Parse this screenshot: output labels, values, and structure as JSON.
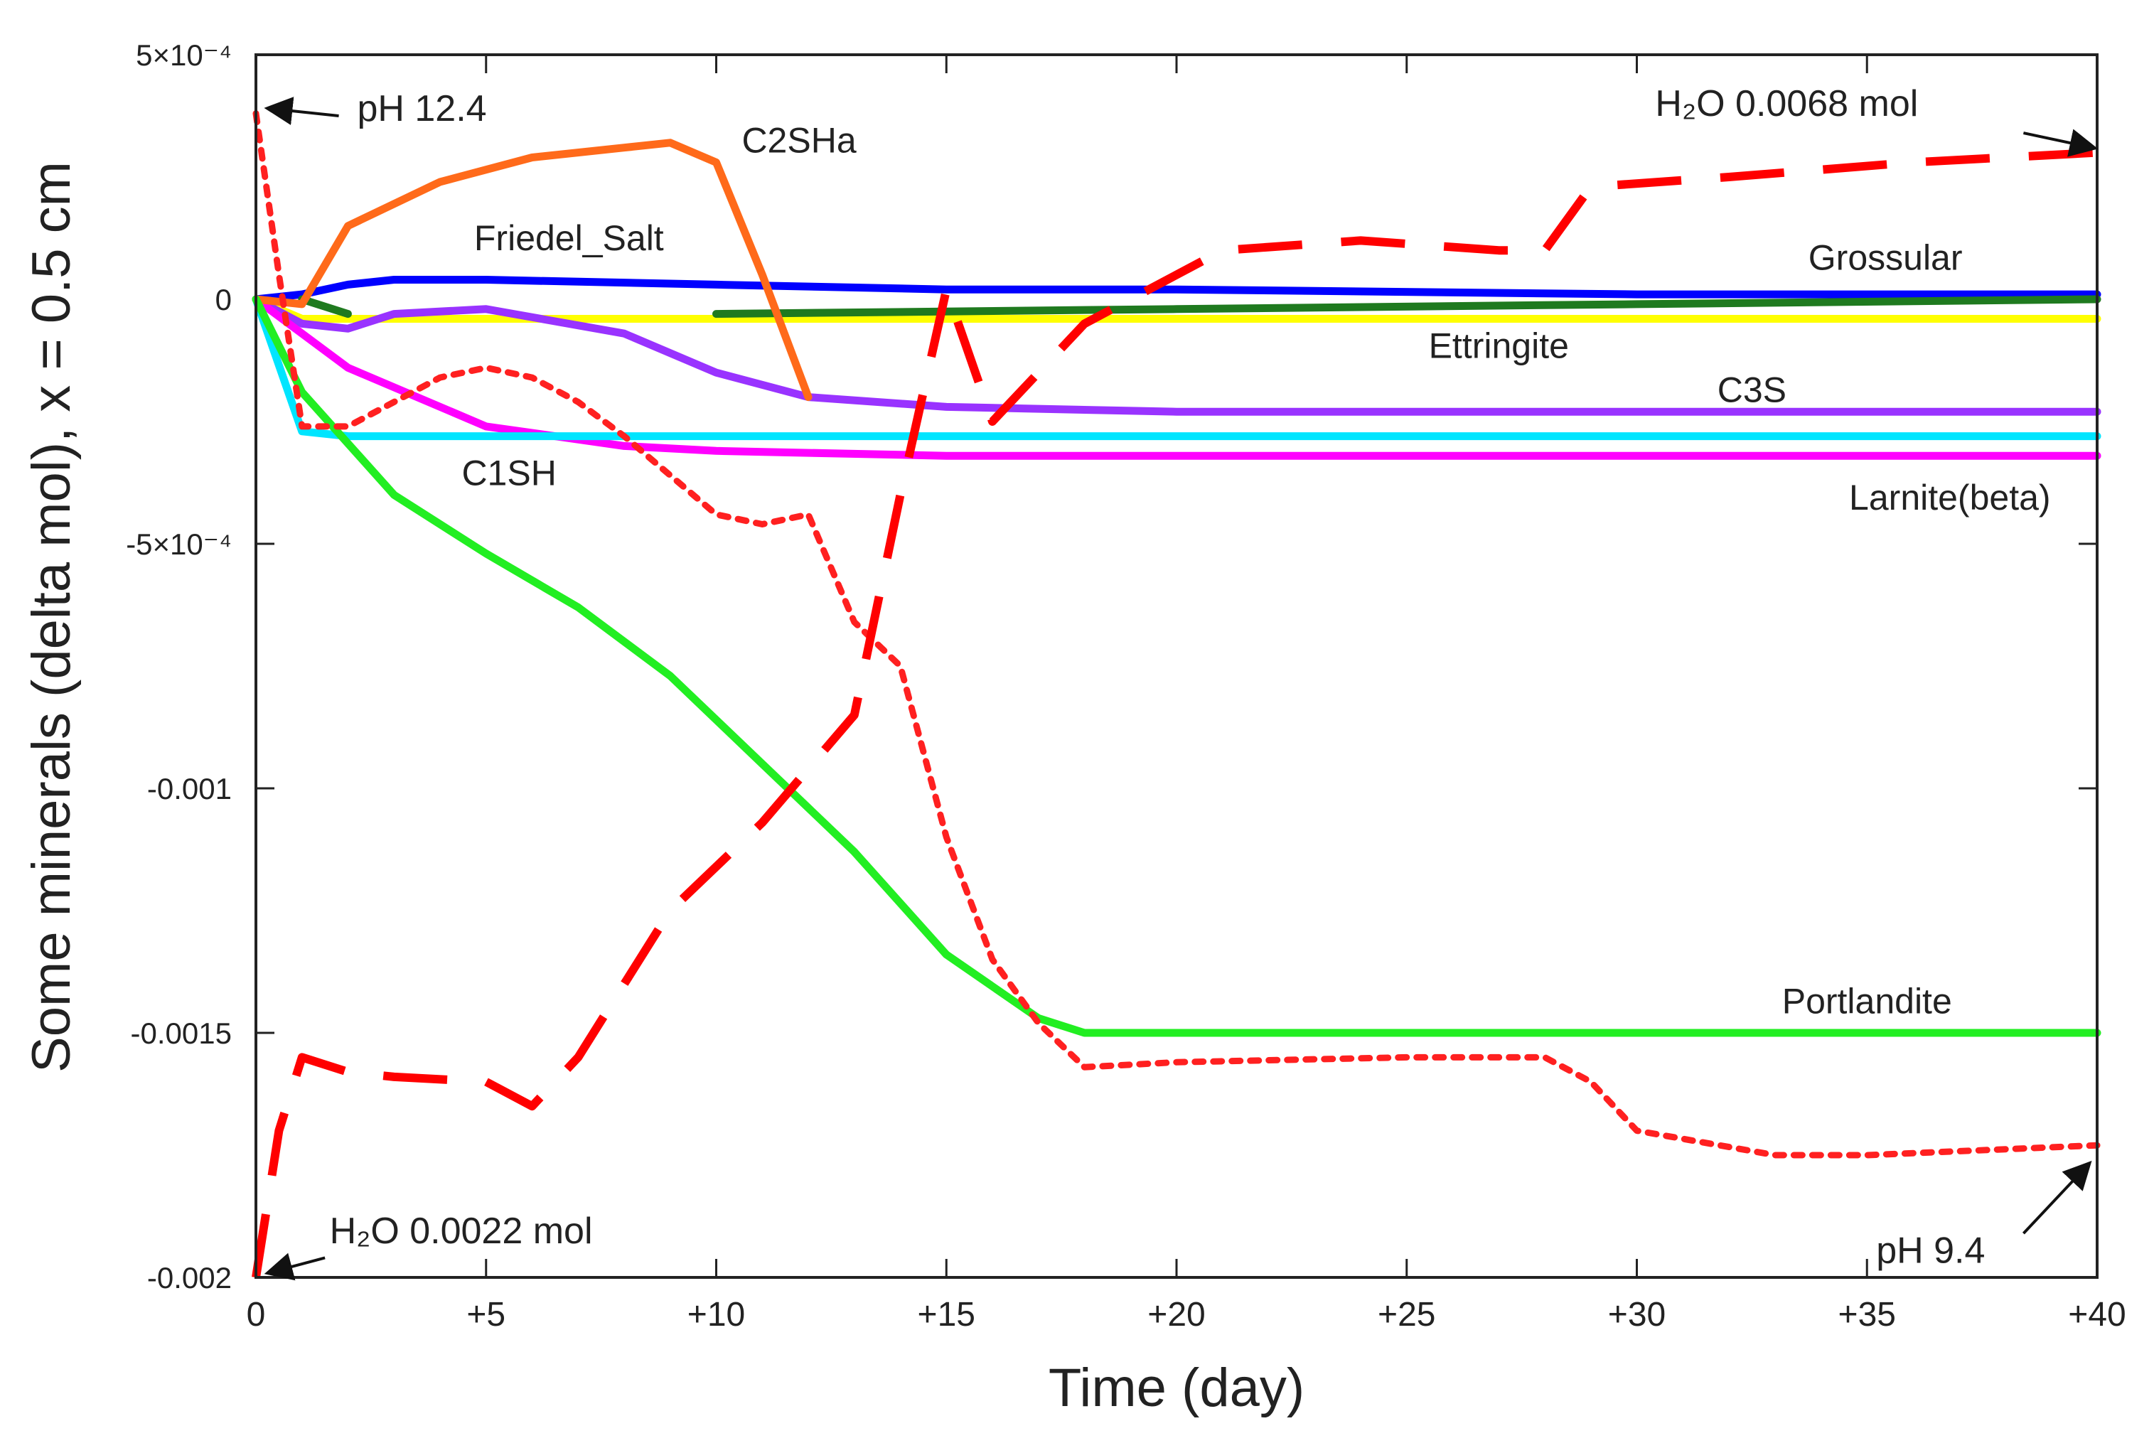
{
  "chart_data": {
    "type": "line",
    "title": "",
    "xlabel": "Time (day)",
    "ylabel": "Some minerals (delta mol), x = 0.5 cm",
    "xlim": [
      0,
      40
    ],
    "ylim": [
      -0.002,
      0.0005
    ],
    "xticks": [
      {
        "value": 0,
        "label": "0"
      },
      {
        "value": 5,
        "label": "+5"
      },
      {
        "value": 10,
        "label": "+10"
      },
      {
        "value": 15,
        "label": "+15"
      },
      {
        "value": 20,
        "label": "+20"
      },
      {
        "value": 25,
        "label": "+25"
      },
      {
        "value": 30,
        "label": "+30"
      },
      {
        "value": 35,
        "label": "+35"
      },
      {
        "value": 40,
        "label": "+40"
      }
    ],
    "yticks": [
      {
        "value": 0.0005,
        "label": "5×10⁻⁴"
      },
      {
        "value": 0,
        "label": "0"
      },
      {
        "value": -0.0005,
        "label": "-5×10⁻⁴"
      },
      {
        "value": -0.001,
        "label": "-0.001"
      },
      {
        "value": -0.0015,
        "label": "-0.0015"
      },
      {
        "value": -0.002,
        "label": "-0.002"
      }
    ],
    "series": [
      {
        "name": "Ettringite",
        "label": "Ettringite",
        "color": "#ffff00",
        "style": "solid",
        "label_at": [
          27,
          -0.00012
        ],
        "x": [
          0,
          1,
          2,
          5,
          10,
          20,
          30,
          40
        ],
        "y": [
          0,
          -4e-05,
          -4e-05,
          -4e-05,
          -4e-05,
          -4e-05,
          -4e-05,
          -4e-05
        ]
      },
      {
        "name": "Friedel_Salt",
        "label": "Friedel_Salt",
        "color": "#0000ff",
        "style": "solid",
        "label_at": [
          6.8,
          0.0001
        ],
        "x": [
          0,
          1,
          2,
          3,
          5,
          10,
          15,
          20,
          30,
          40
        ],
        "y": [
          0,
          1e-05,
          3e-05,
          4e-05,
          4e-05,
          3e-05,
          2e-05,
          2e-05,
          1e-05,
          1e-05
        ]
      },
      {
        "name": "Grossular",
        "label": "Grossular",
        "color": "#1f7a1f",
        "style": "solid",
        "label_at": [
          35.4,
          6e-05
        ],
        "segments": [
          {
            "x": [
              1,
              2
            ],
            "y": [
              0,
              -3e-05
            ]
          },
          {
            "x": [
              10,
              20,
              30,
              40
            ],
            "y": [
              -3e-05,
              -2e-05,
              -1e-05,
              0
            ]
          }
        ]
      },
      {
        "name": "C3S",
        "label": "C3S",
        "color": "#9933ff",
        "style": "solid",
        "label_at": [
          32.5,
          -0.00021
        ],
        "x": [
          0,
          1,
          2,
          3,
          5,
          8,
          10,
          12,
          15,
          20,
          40
        ],
        "y": [
          0,
          -5e-05,
          -6e-05,
          -3e-05,
          -2e-05,
          -7e-05,
          -0.00015,
          -0.0002,
          -0.00022,
          -0.00023,
          -0.00023
        ]
      },
      {
        "name": "Larnite(beta)",
        "label": "Larnite(beta)",
        "color": "#ff00ff",
        "style": "solid",
        "label_at": [
          36.8,
          -0.00043
        ],
        "x": [
          0,
          2,
          5,
          8,
          10,
          15,
          20,
          40
        ],
        "y": [
          0,
          -0.00014,
          -0.00026,
          -0.0003,
          -0.00031,
          -0.00032,
          -0.00032,
          -0.00032
        ]
      },
      {
        "name": "C1SH",
        "label": "C1SH",
        "color": "#00e5ff",
        "style": "solid",
        "label_at": [
          5.5,
          -0.00038
        ],
        "x": [
          0,
          1,
          2,
          5,
          10,
          20,
          30,
          40
        ],
        "y": [
          0,
          -0.00027,
          -0.00028,
          -0.00028,
          -0.00028,
          -0.00028,
          -0.00028,
          -0.00028
        ]
      },
      {
        "name": "C2SHa",
        "label": "C2SHa",
        "color": "#ff6a1a",
        "style": "solid",
        "label_at": [
          11.8,
          0.0003
        ],
        "x": [
          0,
          1,
          2,
          4,
          6,
          8,
          9,
          10,
          11,
          12
        ],
        "y": [
          0,
          -1e-05,
          0.00015,
          0.00024,
          0.00029,
          0.00031,
          0.00032,
          0.00028,
          5e-05,
          -0.0002
        ]
      },
      {
        "name": "Portlandite",
        "label": "Portlandite",
        "color": "#22ee22",
        "style": "solid",
        "label_at": [
          35,
          -0.00146
        ],
        "x": [
          0,
          1,
          3,
          5,
          7,
          9,
          11,
          13,
          15,
          17,
          18,
          20,
          40
        ],
        "y": [
          0,
          -0.00019,
          -0.0004,
          -0.00052,
          -0.00063,
          -0.00077,
          -0.00095,
          -0.00113,
          -0.00134,
          -0.00147,
          -0.0015,
          -0.0015,
          -0.0015
        ]
      },
      {
        "name": "pH",
        "label": "",
        "color": "#ff2020",
        "style": "dotted",
        "x": [
          0,
          0.5,
          1,
          2,
          3,
          4,
          5,
          6,
          7,
          8,
          9,
          10,
          11,
          12,
          13,
          14,
          15,
          16,
          17,
          18,
          20,
          25,
          28,
          29,
          30,
          33,
          35,
          40
        ],
        "y": [
          0.00038,
          5e-05,
          -0.00026,
          -0.00026,
          -0.00021,
          -0.00016,
          -0.00014,
          -0.00016,
          -0.00021,
          -0.00028,
          -0.00036,
          -0.00044,
          -0.00046,
          -0.00044,
          -0.00066,
          -0.00075,
          -0.0011,
          -0.00135,
          -0.00148,
          -0.00157,
          -0.00156,
          -0.00155,
          -0.00155,
          -0.0016,
          -0.0017,
          -0.00175,
          -0.00175,
          -0.00173
        ]
      },
      {
        "name": "H2O",
        "label": "",
        "color": "#ff0000",
        "style": "dashed",
        "x": [
          0,
          0.5,
          1,
          2,
          3,
          5,
          6,
          7,
          9,
          11,
          13,
          14,
          15,
          16,
          17,
          18,
          20,
          21,
          24,
          27,
          28,
          29,
          32,
          36,
          40
        ],
        "y": [
          -0.002,
          -0.0017,
          -0.00155,
          -0.00158,
          -0.00159,
          -0.0016,
          -0.00165,
          -0.00155,
          -0.00125,
          -0.00107,
          -0.00085,
          -0.0004,
          2e-05,
          -0.00025,
          -0.00015,
          -5e-05,
          5e-05,
          0.0001,
          0.00012,
          0.0001,
          0.0001,
          0.00023,
          0.00025,
          0.00028,
          0.0003
        ]
      }
    ],
    "annotations": [
      {
        "id": "ph-start",
        "html": "pH 12.4",
        "text_at": [
          2.2,
          0.000365
        ],
        "text_anchor": "start",
        "arrow_from": [
          1.8,
          0.000375
        ],
        "arrow_to": [
          0.3,
          0.00039
        ]
      },
      {
        "id": "h2o-end",
        "html": "H₂O 0.0068 mol",
        "text_at": [
          30.4,
          0.000375
        ],
        "text_anchor": "start",
        "arrow_from": [
          38.4,
          0.00034
        ],
        "arrow_to": [
          39.9,
          0.00031
        ]
      },
      {
        "id": "h2o-start",
        "html": "H₂O 0.0022 mol",
        "text_at": [
          1.6,
          -0.00193
        ],
        "text_anchor": "start",
        "arrow_from": [
          1.5,
          -0.00196
        ],
        "arrow_to": [
          0.3,
          -0.00199
        ]
      },
      {
        "id": "ph-end",
        "html": "pH 9.4",
        "text_at": [
          35.2,
          -0.00197
        ],
        "text_anchor": "start",
        "arrow_from": [
          38.4,
          -0.00191
        ],
        "arrow_to": [
          39.8,
          -0.00177
        ]
      }
    ]
  }
}
